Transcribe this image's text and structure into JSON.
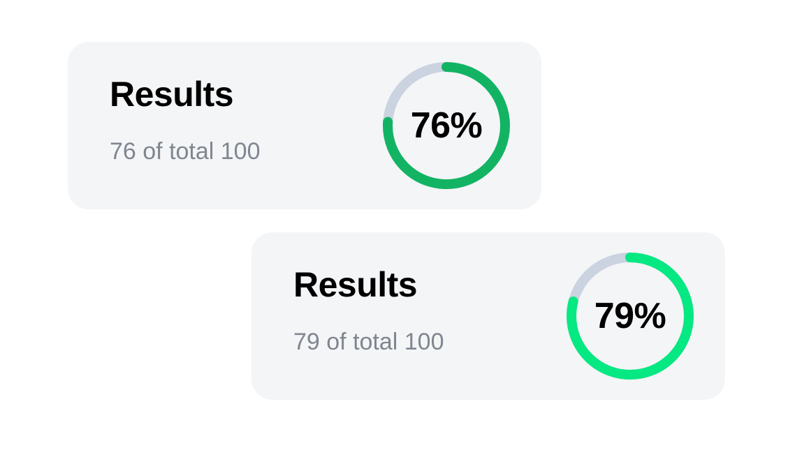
{
  "cards": [
    {
      "title": "Results",
      "subtitle": "76 of total 100",
      "percent_label": "76%",
      "progress": 0.76,
      "color": "#12b464"
    },
    {
      "title": "Results",
      "subtitle": "79 of total 100",
      "percent_label": "79%",
      "progress": 0.79,
      "color": "#06e882"
    }
  ],
  "track_color": "#cbd3e0"
}
